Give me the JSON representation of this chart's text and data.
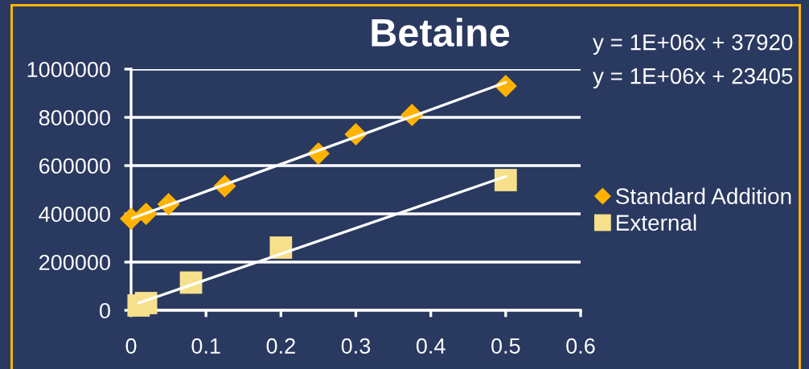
{
  "chart_data": {
    "type": "scatter",
    "title": "Betaine",
    "xlim": [
      0,
      0.6
    ],
    "xticks": [
      0,
      0.1,
      0.2,
      0.3,
      0.4,
      0.5,
      0.6
    ],
    "ylim": [
      0,
      1000000
    ],
    "yticks": [
      0,
      200000,
      400000,
      600000,
      800000,
      1000000
    ],
    "grid": "y",
    "legend": "right",
    "series": [
      {
        "name": "Standard Addition",
        "marker": "diamond",
        "color": "#ffb300",
        "x": [
          0,
          0.02,
          0.05,
          0.125,
          0.25,
          0.3,
          0.375,
          0.5
        ],
        "values": [
          380000,
          400000,
          440000,
          515000,
          650000,
          730000,
          810000,
          930000
        ]
      },
      {
        "name": "External",
        "marker": "square",
        "color": "#f7e08c",
        "x": [
          0.01,
          0.02,
          0.08,
          0.2,
          0.5
        ],
        "values": [
          20000,
          30000,
          115000,
          260000,
          540000
        ]
      },
      {
        "type": "line",
        "color": "#ffffff",
        "marker": "none",
        "x": [
          0,
          0.5
        ],
        "values": [
          380000,
          945000
        ]
      },
      {
        "type": "line",
        "color": "#ffffff",
        "marker": "none",
        "x": [
          0.01,
          0.5
        ],
        "values": [
          30000,
          555000
        ]
      }
    ],
    "annotations": [
      "y = 1E+06x + 37920",
      "y = 1E+06x + 23405"
    ]
  }
}
